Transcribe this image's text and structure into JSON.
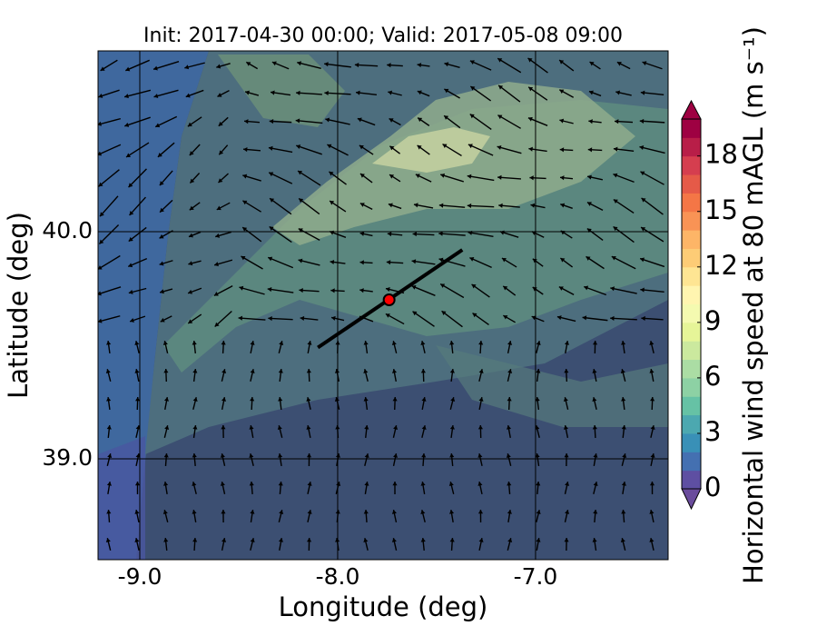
{
  "title": "Init: 2017-04-30 00:00; Valid: 2017-05-08 09:00",
  "x_axis": {
    "label": "Longitude (deg)",
    "lim": [
      -9.211,
      -6.33
    ],
    "ticks": [
      {
        "value": -9,
        "label": "-9.0"
      },
      {
        "value": -8,
        "label": "-8.0"
      },
      {
        "value": -7,
        "label": "-7.0"
      }
    ]
  },
  "y_axis": {
    "label": "Latitude (deg)",
    "lim": [
      38.556,
      40.796
    ],
    "ticks": [
      {
        "value": 39,
        "label": "39.0"
      },
      {
        "value": 40,
        "label": "40.0"
      }
    ]
  },
  "colorbar": {
    "label": "Horizontal wind speed at 80 mAGL (m s⁻¹)",
    "lim": [
      0,
      20
    ],
    "ticks": [
      0,
      3,
      6,
      9,
      12,
      15,
      18
    ],
    "colors": [
      "#5e4fa2",
      "#4470b1",
      "#3990b7",
      "#4ca8b0",
      "#66c2a5",
      "#8dd1a4",
      "#abdda4",
      "#cbe99e",
      "#e6f598",
      "#f4fab0",
      "#fff5b0",
      "#fee593",
      "#fdcc76",
      "#fdb567",
      "#f99355",
      "#f47646",
      "#e55a48",
      "#d53e4f",
      "#b81e48",
      "#9e0142"
    ],
    "under_color": "#6a4c9c",
    "over_color": "#9e0142"
  },
  "transect": {
    "start": [
      -8.1,
      39.49
    ],
    "end": [
      -7.37,
      39.92
    ],
    "color": "#000000"
  },
  "site": {
    "position": [
      -7.74,
      39.7
    ],
    "color": "#ff0000"
  }
}
